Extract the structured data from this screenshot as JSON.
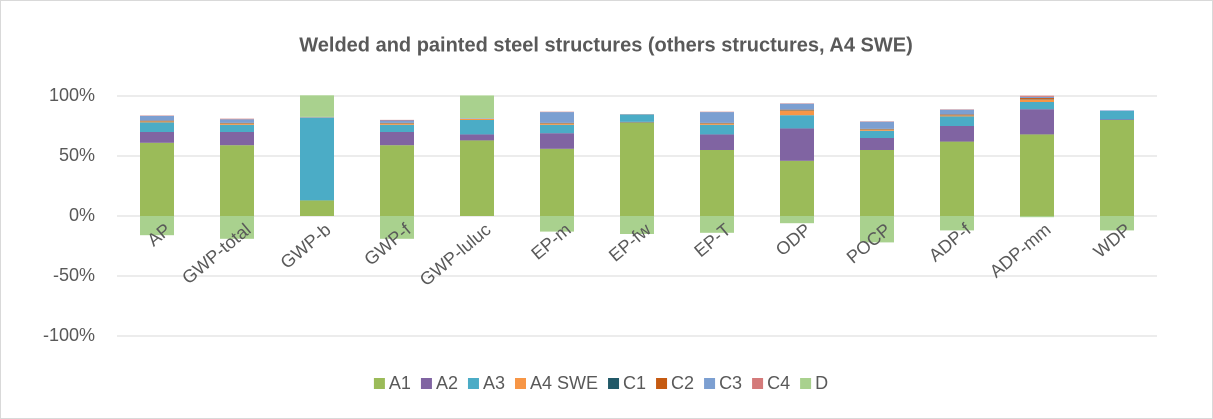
{
  "chart_data": {
    "type": "bar",
    "stacked": true,
    "title": "Welded and painted steel structures (others structures, A4 SWE)",
    "categories": [
      "AP",
      "GWP-total",
      "GWP-b",
      "GWP-f",
      "GWP-luluc",
      "EP-m",
      "EP-fw",
      "EP-T",
      "ODP",
      "POCP",
      "ADP-f",
      "ADP-mm",
      "WDP"
    ],
    "series": [
      {
        "name": "A1",
        "color": "#9bbb59",
        "values": [
          61,
          59,
          13,
          59,
          63,
          56,
          78,
          55,
          46,
          55,
          62,
          68,
          80
        ]
      },
      {
        "name": "A2",
        "color": "#8064a2",
        "values": [
          9,
          11,
          0,
          11,
          5,
          13,
          0.5,
          13,
          27,
          10,
          13,
          21,
          0.5
        ]
      },
      {
        "name": "A3",
        "color": "#4bacc6",
        "values": [
          8,
          6,
          69,
          6,
          12,
          7,
          6,
          8,
          11,
          6,
          8,
          6,
          7
        ]
      },
      {
        "name": "A4 SWE",
        "color": "#f79646",
        "values": [
          1,
          1,
          0.3,
          1,
          1,
          1,
          0.2,
          1,
          4,
          1,
          1,
          2,
          0
        ]
      },
      {
        "name": "C1",
        "color": "#215968",
        "values": [
          0.3,
          0.3,
          0,
          0.3,
          0,
          0.3,
          0,
          0.3,
          0.3,
          0.3,
          0.3,
          0.3,
          0
        ]
      },
      {
        "name": "C2",
        "color": "#c55a11",
        "values": [
          0.2,
          0.3,
          0,
          0.3,
          0,
          0.3,
          0,
          0.3,
          0.3,
          0.3,
          0.3,
          1,
          0
        ]
      },
      {
        "name": "C3",
        "color": "#7c9fd1",
        "values": [
          4,
          3,
          0.3,
          2,
          0.5,
          9,
          0.3,
          9,
          5,
          6,
          4,
          1,
          0.5
        ]
      },
      {
        "name": "C4",
        "color": "#d47a7a",
        "values": [
          0.3,
          0.5,
          0,
          0.5,
          0,
          0.3,
          0,
          0.3,
          0.3,
          0.3,
          0.3,
          1,
          0
        ]
      },
      {
        "name": "D",
        "color": "#a9d18e",
        "values": [
          -16,
          -19,
          18,
          -19,
          19,
          -13,
          -15,
          -14,
          -6,
          -22,
          -12,
          -1,
          -12
        ]
      }
    ],
    "ylim": [
      -100,
      100
    ],
    "yticks": [
      {
        "value": -100,
        "label": "-100%"
      },
      {
        "value": -50,
        "label": "-50%"
      },
      {
        "value": 0,
        "label": "0%"
      },
      {
        "value": 50,
        "label": "50%"
      },
      {
        "value": 100,
        "label": "100%"
      }
    ],
    "grid": true,
    "legend": "bottom"
  }
}
